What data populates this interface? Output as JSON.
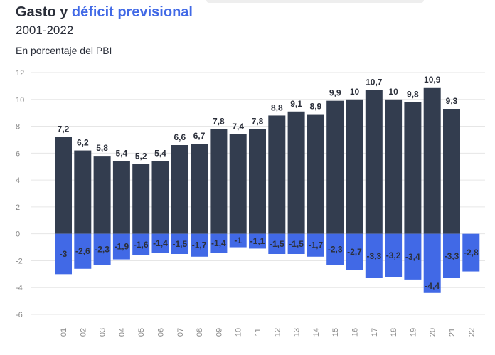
{
  "header": {
    "title_part1": "Gasto y",
    "title_part2": "déficit previsional",
    "subtitle": "2001-2022",
    "unit": "En porcentaje del PBI"
  },
  "colors": {
    "gasto": "#333d4f",
    "deficit": "#4169e6",
    "text": "#2b2f3a",
    "grid": "#e6e6e6",
    "axis_text": "#888888"
  },
  "chart_data": {
    "type": "bar",
    "title": "Gasto y déficit previsional",
    "subtitle": "2001-2022",
    "ylabel": "En porcentaje del PBI",
    "categories": [
      "01",
      "02",
      "03",
      "04",
      "05",
      "06",
      "07",
      "08",
      "09",
      "10",
      "11",
      "12",
      "13",
      "14",
      "15",
      "16",
      "17",
      "18",
      "19",
      "20",
      "21",
      "22"
    ],
    "ylim": [
      -6,
      12
    ],
    "yticks": [
      12,
      10,
      8,
      6,
      4,
      2,
      0,
      -2,
      -4,
      -6
    ],
    "grid": true,
    "series": [
      {
        "key": "gasto",
        "values": [
          7.2,
          6.2,
          5.8,
          5.4,
          5.2,
          5.4,
          6.6,
          6.7,
          7.8,
          7.4,
          7.8,
          8.8,
          9.1,
          8.9,
          9.9,
          10,
          10.7,
          10,
          9.8,
          10.9,
          9.3,
          null
        ],
        "labels": [
          "7,2",
          "6,2",
          "5,8",
          "5,4",
          "5,2",
          "5,4",
          "6,6",
          "6,7",
          "7,8",
          "7,4",
          "7,8",
          "8,8",
          "9,1",
          "8,9",
          "9,9",
          "10",
          "10,7",
          "10",
          "9,8",
          "10,9",
          "9,3",
          ""
        ]
      },
      {
        "key": "deficit",
        "values": [
          -3,
          -2.6,
          -2.3,
          -1.9,
          -1.6,
          -1.4,
          -1.5,
          -1.7,
          -1.4,
          -1,
          -1.1,
          -1.5,
          -1.5,
          -1.7,
          -2.3,
          -2.7,
          -3.3,
          -3.2,
          -3.4,
          -4.4,
          -3.3,
          -2.8
        ],
        "labels": [
          "-3",
          "-2,6",
          "-2,3",
          "-1,9",
          "-1,6",
          "-1,4",
          "-1,5",
          "-1,7",
          "-1,4",
          "-1",
          "-1,1",
          "-1,5",
          "-1,5",
          "-1,7",
          "-2,3",
          "-2,7",
          "-3,3",
          "-3,2",
          "-3,4",
          "-4,4",
          "-3,3",
          "-2,8"
        ]
      }
    ]
  }
}
